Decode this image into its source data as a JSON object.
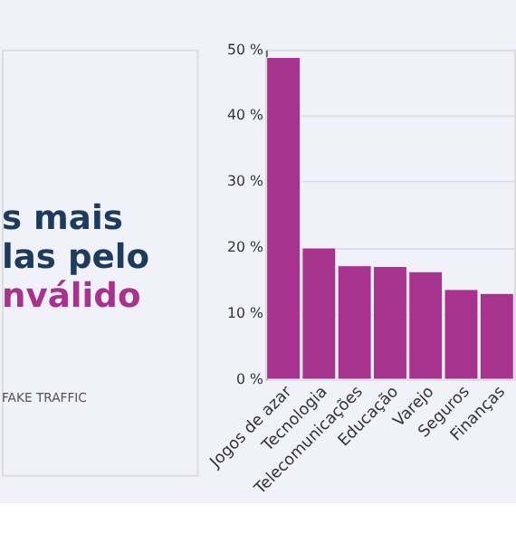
{
  "chart_data": {
    "type": "bar",
    "title": "s mais\nlas pelo",
    "subtitle": "nválido",
    "annotations": [
      "FAKE TRAFFIC"
    ],
    "categories": [
      "Jogos de azar",
      "Tecnologia",
      "Telecomunicações",
      "Educação",
      "Varejo",
      "Seguros",
      "Finanças"
    ],
    "values": [
      48.8,
      19.9,
      17.2,
      17.1,
      16.3,
      13.6,
      13.0
    ],
    "color": "#a8338f",
    "ylim": [
      0,
      50
    ],
    "yticks": [
      {
        "value": 0,
        "label": "0 %"
      },
      {
        "value": 10,
        "label": "10 %"
      },
      {
        "value": 20,
        "label": "20 %"
      },
      {
        "value": 30,
        "label": "30 %"
      },
      {
        "value": 40,
        "label": "40 %"
      },
      {
        "value": 50,
        "label": "50 %"
      }
    ],
    "grid": "y"
  }
}
